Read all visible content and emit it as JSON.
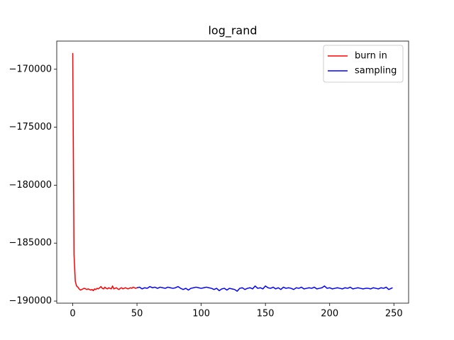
{
  "chart_data": {
    "type": "line",
    "title": "log_rand",
    "xlim": [
      -12.45,
      261.45
    ],
    "ylim": [
      -190180,
      -167570
    ],
    "xticks": [
      0,
      50,
      100,
      150,
      200,
      250
    ],
    "yticks": [
      {
        "value": -190000,
        "label": "−190000"
      },
      {
        "value": -185000,
        "label": "−185000"
      },
      {
        "value": -180000,
        "label": "−180000"
      },
      {
        "value": -175000,
        "label": "−175000"
      },
      {
        "value": -170000,
        "label": "−170000"
      }
    ],
    "legend": "upper right",
    "grid": false,
    "series": [
      {
        "name": "burn in",
        "color": "#ff0000",
        "x": [
          0,
          1,
          2,
          3,
          4,
          5,
          6,
          7,
          8,
          9,
          10,
          11,
          12,
          13,
          14,
          15,
          16,
          17,
          18,
          19,
          20,
          21,
          22,
          23,
          24,
          25,
          26,
          27,
          28,
          29,
          30,
          31,
          32,
          33,
          34,
          35,
          36,
          37,
          38,
          39,
          40,
          41,
          42,
          43,
          44,
          45,
          46,
          47,
          48,
          49,
          50
        ],
        "values": [
          -168600,
          -186000,
          -188300,
          -188700,
          -188800,
          -188950,
          -189050,
          -189000,
          -188950,
          -188900,
          -188950,
          -189000,
          -188950,
          -189000,
          -189050,
          -189000,
          -189100,
          -188950,
          -189000,
          -188900,
          -188950,
          -188850,
          -188750,
          -188900,
          -188950,
          -188800,
          -188900,
          -188950,
          -188850,
          -188900,
          -188950,
          -188700,
          -188950,
          -188900,
          -188850,
          -188950,
          -189000,
          -188900,
          -188850,
          -188950,
          -188900,
          -188850,
          -188900,
          -188950,
          -188900,
          -188850,
          -188900,
          -188800,
          -188850,
          -188900,
          -188850
        ]
      },
      {
        "name": "sampling",
        "color": "#0000ff",
        "x": [
          50,
          52,
          54,
          56,
          58,
          60,
          62,
          64,
          66,
          68,
          70,
          72,
          74,
          76,
          78,
          80,
          82,
          84,
          86,
          88,
          90,
          92,
          94,
          96,
          98,
          100,
          102,
          104,
          106,
          108,
          110,
          112,
          114,
          116,
          118,
          120,
          122,
          124,
          126,
          128,
          130,
          132,
          134,
          136,
          138,
          140,
          142,
          144,
          146,
          148,
          150,
          152,
          154,
          156,
          158,
          160,
          162,
          164,
          166,
          168,
          170,
          172,
          174,
          176,
          178,
          180,
          182,
          184,
          186,
          188,
          190,
          192,
          194,
          196,
          198,
          200,
          202,
          204,
          206,
          208,
          210,
          212,
          214,
          216,
          218,
          220,
          222,
          224,
          226,
          228,
          230,
          232,
          234,
          236,
          238,
          240,
          242,
          244,
          246,
          248,
          249
        ],
        "values": [
          -188850,
          -188800,
          -188950,
          -188850,
          -188900,
          -188750,
          -188850,
          -188800,
          -188900,
          -188800,
          -188850,
          -188900,
          -188800,
          -188850,
          -188900,
          -188850,
          -188750,
          -188900,
          -189000,
          -188900,
          -189050,
          -188900,
          -188850,
          -188800,
          -188850,
          -188900,
          -188850,
          -188800,
          -188850,
          -188900,
          -189000,
          -188900,
          -189100,
          -188950,
          -188900,
          -189050,
          -188900,
          -188950,
          -189000,
          -189150,
          -188900,
          -188850,
          -189000,
          -188900,
          -188850,
          -188950,
          -188700,
          -188900,
          -188850,
          -188950,
          -188700,
          -188850,
          -188900,
          -188800,
          -188950,
          -188850,
          -189000,
          -188800,
          -188900,
          -188850,
          -188900,
          -189000,
          -188850,
          -188900,
          -188800,
          -188950,
          -188900,
          -188850,
          -188900,
          -188800,
          -188950,
          -188900,
          -188850,
          -188700,
          -188900,
          -188850,
          -188950,
          -188900,
          -188850,
          -188900,
          -188950,
          -188850,
          -188900,
          -188800,
          -188950,
          -188900,
          -188850,
          -188900,
          -188950,
          -188900,
          -188900,
          -188950,
          -188850,
          -188900,
          -188950,
          -188850,
          -188900,
          -188800,
          -189000,
          -188900,
          -188850
        ]
      }
    ]
  }
}
